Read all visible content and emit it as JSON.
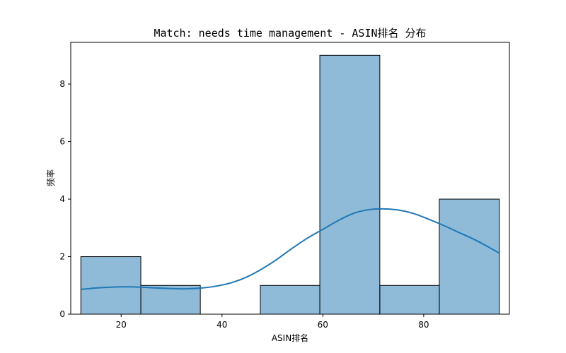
{
  "chart_data": {
    "type": "bar",
    "title": "Match: needs time management - ASIN排名 分布",
    "xlabel": "ASIN排名",
    "ylabel": "频率",
    "xlim": [
      10,
      97
    ],
    "ylim": [
      0,
      9.45
    ],
    "xticks": [
      20,
      40,
      60,
      80
    ],
    "yticks": [
      0,
      2,
      4,
      6,
      8
    ],
    "bins": [
      {
        "start": 12,
        "end": 23.9,
        "count": 2
      },
      {
        "start": 23.9,
        "end": 35.7,
        "count": 1
      },
      {
        "start": 35.7,
        "end": 47.6,
        "count": 0
      },
      {
        "start": 47.6,
        "end": 59.4,
        "count": 1
      },
      {
        "start": 59.4,
        "end": 71.3,
        "count": 9
      },
      {
        "start": 71.3,
        "end": 83.1,
        "count": 1
      },
      {
        "start": 83.1,
        "end": 95,
        "count": 4
      }
    ],
    "kde": {
      "x": [
        12,
        15,
        18,
        21,
        24,
        27,
        30,
        33,
        36,
        39,
        42,
        45,
        48,
        51,
        54,
        57,
        60,
        63,
        66,
        69,
        72,
        75,
        78,
        81,
        84,
        87,
        90,
        93,
        95
      ],
      "y": [
        0.86,
        0.91,
        0.94,
        0.95,
        0.94,
        0.91,
        0.89,
        0.88,
        0.91,
        0.98,
        1.1,
        1.3,
        1.58,
        1.92,
        2.3,
        2.65,
        2.95,
        3.25,
        3.5,
        3.63,
        3.66,
        3.62,
        3.5,
        3.3,
        3.08,
        2.84,
        2.6,
        2.32,
        2.12
      ]
    },
    "colors": {
      "bar": "#1f77b4",
      "kde": "#1f77b4",
      "edge": "#000000"
    },
    "grid": false,
    "legend": false
  }
}
